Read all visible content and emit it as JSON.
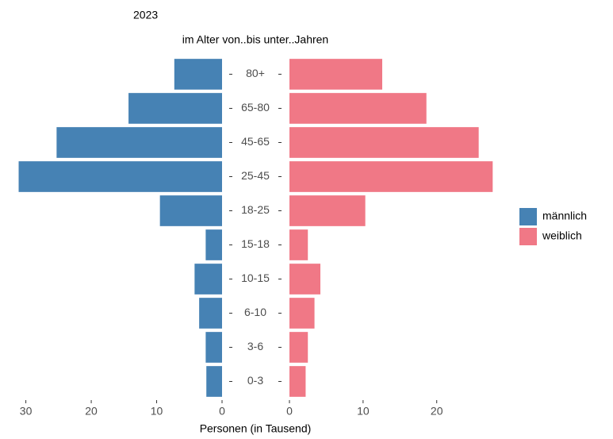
{
  "chart_data": {
    "type": "pyramid",
    "title": "2023",
    "subtitle": "im Alter von..bis unter..Jahren",
    "x_label": "Personen (in Tausend)",
    "categories": [
      "80+",
      "65-80",
      "45-65",
      "25-45",
      "18-25",
      "15-18",
      "10-15",
      "6-10",
      "3-6",
      "0-3"
    ],
    "series": [
      {
        "name": "männlich",
        "color": "#4682b4",
        "values": [
          7.3,
          14.3,
          25.3,
          31.1,
          9.5,
          2.5,
          4.2,
          3.5,
          2.5,
          2.4
        ],
        "xlim": [
          31.2,
          0
        ],
        "xticks": [
          30,
          20,
          10,
          0
        ]
      },
      {
        "name": "weiblich",
        "color": "#f07886",
        "values": [
          12.6,
          18.6,
          25.7,
          27.6,
          10.3,
          2.5,
          4.2,
          3.4,
          2.5,
          2.2
        ],
        "xlim": [
          0,
          28
        ],
        "xticks": [
          0,
          10,
          20
        ]
      }
    ],
    "legend": "right"
  }
}
